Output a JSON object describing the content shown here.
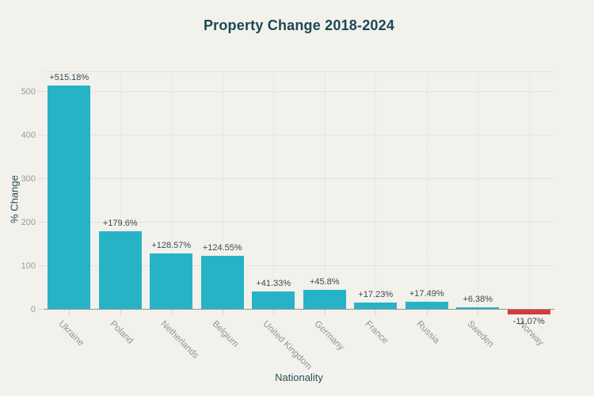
{
  "title": "Property Change 2018-2024",
  "colors": {
    "background": "#f2f1ec",
    "title_text": "#1d4753",
    "axis_title_text": "#2f4d57",
    "tick_label_text": "#9b9b97",
    "category_label_text": "#8d969a",
    "value_label_text": "#3a4a50",
    "gridline": "#e4e3db",
    "baseline": "#96938b",
    "bar_positive": "#27b3c6",
    "bar_negative": "#d13c3e"
  },
  "chart_data": {
    "type": "bar",
    "title": "Property Change 2018-2024",
    "xlabel": "Nationality",
    "ylabel": "% Change",
    "categories": [
      "Ukraine",
      "Poland",
      "Netherlands",
      "Belgium",
      "United Kingdom",
      "Germany",
      "France",
      "Russia",
      "Sweden",
      "Norway"
    ],
    "values": [
      515.18,
      179.6,
      128.57,
      124.55,
      41.33,
      45.8,
      17.23,
      17.49,
      6.38,
      -11.07
    ],
    "value_labels": [
      "+515.18%",
      "+179.6%",
      "+128.57%",
      "+124.55%",
      "+41.33%",
      "+45.8%",
      "+17.23%",
      "+17.49%",
      "+6.38%",
      "-11.07%"
    ],
    "yticks": [
      0,
      100,
      200,
      300,
      400,
      500
    ],
    "ylim": [
      -40,
      545
    ],
    "grid": true,
    "legend_position": "none",
    "bar_colors": [
      "#27b3c6",
      "#27b3c6",
      "#27b3c6",
      "#27b3c6",
      "#27b3c6",
      "#27b3c6",
      "#27b3c6",
      "#27b3c6",
      "#27b3c6",
      "#d13c3e"
    ]
  }
}
